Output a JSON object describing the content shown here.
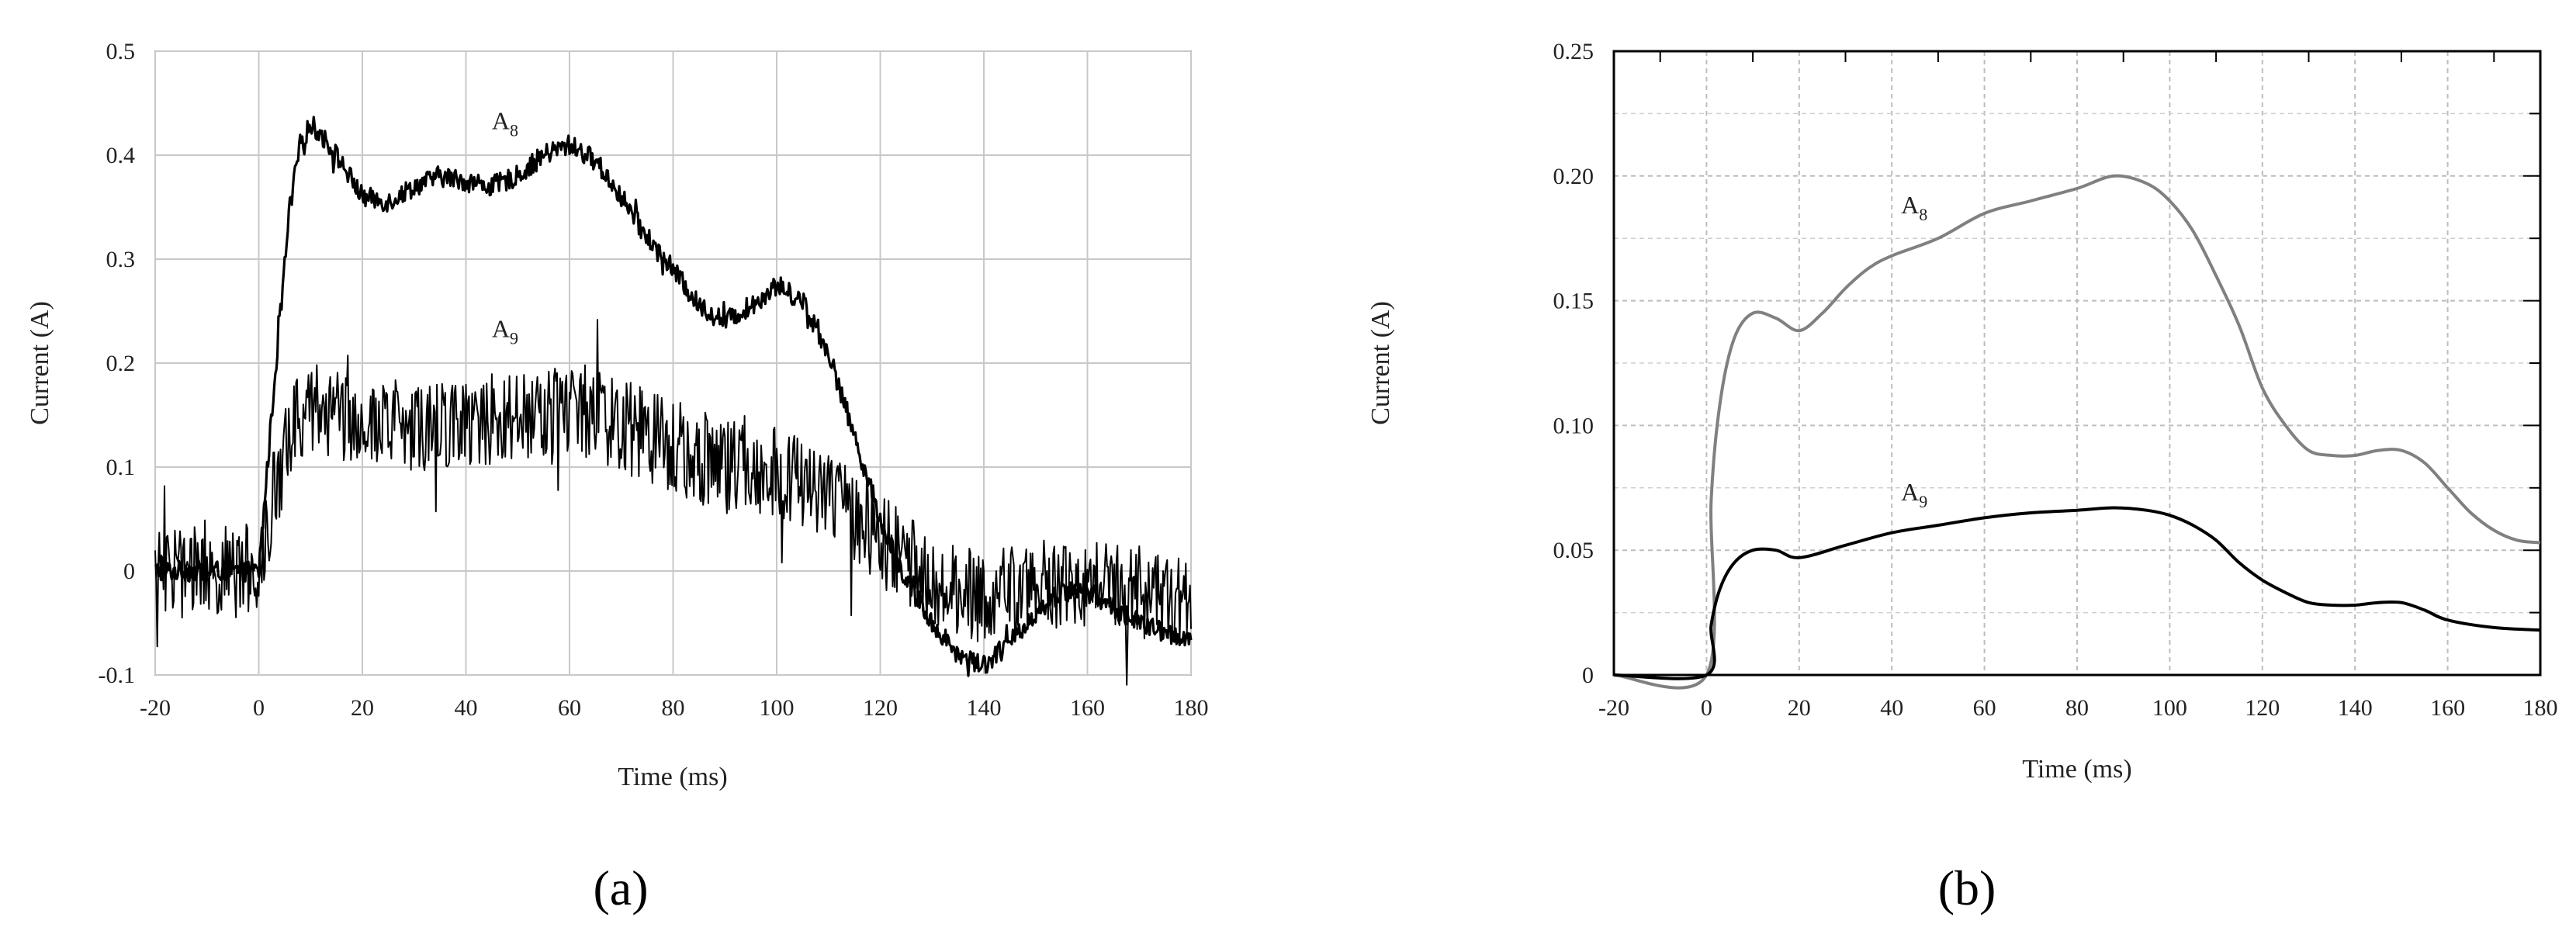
{
  "chart_data": [
    {
      "panel": "(a)",
      "type": "line",
      "xlabel": "Time (ms)",
      "ylabel": "Current (A)",
      "xlim": [
        -20,
        180
      ],
      "ylim": [
        -0.1,
        0.5
      ],
      "x_ticks": [
        "-20",
        "0",
        "20",
        "40",
        "60",
        "80",
        "100",
        "120",
        "140",
        "160",
        "180"
      ],
      "y_ticks": [
        "-0.1",
        "0",
        "0.1",
        "0.2",
        "0.3",
        "0.4",
        "0.5"
      ],
      "grid": true,
      "series": [
        {
          "label_main": "A",
          "label_sub": "8",
          "label_at": [
            45,
            0.425
          ],
          "noisy": true,
          "noise": 0.01,
          "color": "#000000",
          "x": [
            -20,
            -10,
            0,
            3,
            6,
            8,
            10,
            12,
            15,
            20,
            25,
            30,
            35,
            40,
            45,
            50,
            55,
            60,
            65,
            70,
            75,
            80,
            85,
            90,
            95,
            100,
            105,
            110,
            115,
            120,
            125,
            130,
            135,
            140,
            145,
            150,
            155,
            160,
            165,
            170,
            175,
            180
          ],
          "y": [
            0.0,
            0.0,
            0.0,
            0.18,
            0.35,
            0.41,
            0.43,
            0.42,
            0.4,
            0.36,
            0.355,
            0.37,
            0.38,
            0.375,
            0.37,
            0.38,
            0.4,
            0.41,
            0.395,
            0.36,
            0.32,
            0.29,
            0.255,
            0.24,
            0.255,
            0.275,
            0.26,
            0.21,
            0.13,
            0.05,
            -0.01,
            -0.05,
            -0.08,
            -0.09,
            -0.07,
            -0.04,
            -0.02,
            -0.02,
            -0.035,
            -0.05,
            -0.06,
            -0.065
          ]
        },
        {
          "label_main": "A",
          "label_sub": "9",
          "label_at": [
            45,
            0.225
          ],
          "noisy": true,
          "noise": 0.045,
          "color": "#000000",
          "x": [
            -20,
            -10,
            0,
            3,
            6,
            10,
            20,
            30,
            40,
            50,
            60,
            70,
            80,
            90,
            100,
            105,
            110,
            115,
            120,
            125,
            130,
            135,
            140,
            150,
            160,
            170,
            180
          ],
          "y": [
            0.0,
            0.0,
            0.0,
            0.08,
            0.13,
            0.16,
            0.145,
            0.14,
            0.145,
            0.15,
            0.16,
            0.14,
            0.12,
            0.1,
            0.095,
            0.085,
            0.07,
            0.05,
            0.03,
            0.01,
            -0.01,
            -0.02,
            -0.025,
            -0.015,
            -0.01,
            -0.02,
            -0.03
          ]
        }
      ]
    },
    {
      "panel": "(b)",
      "type": "line",
      "xlabel": "Time (ms)",
      "ylabel": "Current (A)",
      "xlim": [
        -20,
        180
      ],
      "ylim": [
        0,
        0.25
      ],
      "x_ticks": [
        "-20",
        "0",
        "20",
        "40",
        "60",
        "80",
        "100",
        "120",
        "140",
        "160",
        "180"
      ],
      "y_ticks": [
        "0",
        "0.05",
        "0.10",
        "0.15",
        "0.20",
        "0.25"
      ],
      "grid": true,
      "series": [
        {
          "label_main": "A",
          "label_sub": "8",
          "label_at": [
            42,
            0.185
          ],
          "noisy": false,
          "noise": 0,
          "color": "#808080",
          "x": [
            -20,
            0,
            1,
            3,
            6,
            10,
            15,
            20,
            25,
            30,
            35,
            40,
            50,
            60,
            70,
            80,
            88,
            95,
            100,
            105,
            110,
            115,
            120,
            125,
            130,
            135,
            140,
            145,
            150,
            155,
            160,
            165,
            170,
            175,
            180
          ],
          "y": [
            0.0,
            0.0,
            0.07,
            0.11,
            0.135,
            0.145,
            0.143,
            0.138,
            0.145,
            0.155,
            0.163,
            0.168,
            0.175,
            0.185,
            0.19,
            0.195,
            0.2,
            0.197,
            0.19,
            0.178,
            0.16,
            0.14,
            0.115,
            0.1,
            0.09,
            0.088,
            0.088,
            0.09,
            0.09,
            0.085,
            0.075,
            0.065,
            0.058,
            0.054,
            0.053
          ]
        },
        {
          "label_main": "A",
          "label_sub": "9",
          "label_at": [
            42,
            0.07
          ],
          "noisy": false,
          "noise": 0,
          "color": "#000000",
          "x": [
            -20,
            0,
            1,
            3,
            6,
            10,
            15,
            20,
            30,
            40,
            50,
            60,
            70,
            80,
            88,
            95,
            100,
            105,
            110,
            115,
            120,
            125,
            130,
            135,
            140,
            145,
            150,
            155,
            160,
            170,
            180
          ],
          "y": [
            0.0,
            0.0,
            0.02,
            0.035,
            0.045,
            0.05,
            0.05,
            0.047,
            0.052,
            0.057,
            0.06,
            0.063,
            0.065,
            0.066,
            0.067,
            0.066,
            0.064,
            0.06,
            0.054,
            0.045,
            0.038,
            0.033,
            0.029,
            0.028,
            0.028,
            0.029,
            0.029,
            0.026,
            0.022,
            0.019,
            0.018
          ]
        }
      ]
    }
  ]
}
